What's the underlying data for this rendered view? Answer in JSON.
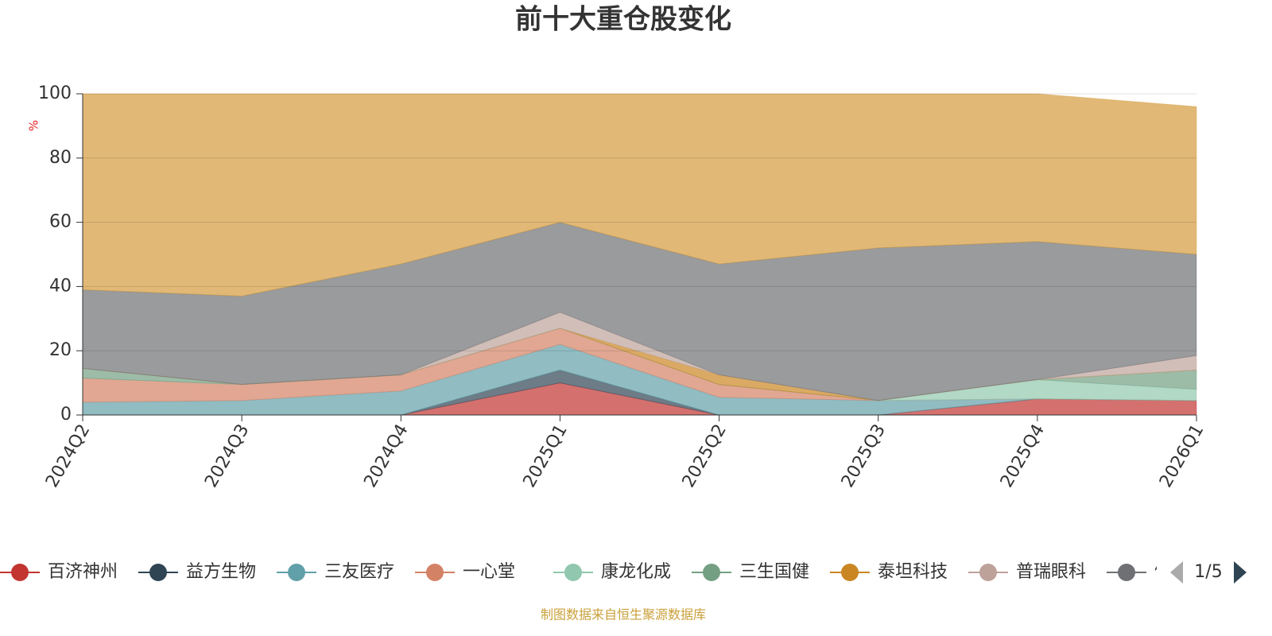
{
  "chart_data": {
    "type": "stacked-area",
    "title": "前十大重仓股变化",
    "y_label": "%",
    "categories": [
      "2024Q2",
      "2024Q3",
      "2024Q4",
      "2025Q1",
      "2025Q2",
      "2025Q3",
      "2025Q4",
      "2026Q1"
    ],
    "ylim": [
      0,
      100
    ],
    "yticks": [
      0,
      20,
      40,
      60,
      80,
      100
    ],
    "grid": true,
    "series": [
      {
        "name": "百济神州",
        "color": "#c23531",
        "values": [
          0,
          0,
          0,
          10,
          0,
          0,
          5,
          4.5
        ]
      },
      {
        "name": "益方生物",
        "color": "#2f4554",
        "values": [
          0,
          0,
          0,
          4,
          0,
          0,
          0,
          0
        ]
      },
      {
        "name": "三友医疗",
        "color": "#61a0a8",
        "values": [
          4,
          4.5,
          7.5,
          8,
          5.5,
          4.5,
          0,
          0
        ]
      },
      {
        "name": "一心堂",
        "color": "#d48265",
        "values": [
          7.5,
          5,
          5,
          5,
          4,
          0,
          0,
          0
        ]
      },
      {
        "name": "康龙化成",
        "color": "#91c7ae",
        "values": [
          0,
          0,
          0,
          0,
          0,
          0,
          6,
          3.5
        ]
      },
      {
        "name": "三生国健",
        "color": "#749f83",
        "values": [
          3,
          0,
          0,
          0,
          0,
          0,
          0,
          6
        ]
      },
      {
        "name": "泰坦科技",
        "color": "#ca8622",
        "values": [
          0,
          0,
          0,
          0,
          3,
          0,
          0,
          0
        ]
      },
      {
        "name": "普瑞眼科",
        "color": "#bda29a",
        "values": [
          0,
          0,
          0,
          5,
          0,
          0,
          0,
          4.5
        ]
      },
      {
        "name": "健",
        "color": "#6e7074",
        "values": [
          24.5,
          27.5,
          34.5,
          28,
          34.5,
          47.5,
          43,
          31.5
        ]
      },
      {
        "color": "#d49a3c",
        "values": [
          61,
          63,
          53,
          40,
          53,
          48,
          46,
          46
        ]
      }
    ],
    "legend_page": "1/5",
    "source": "制图数据来自恒生聚源数据库"
  }
}
